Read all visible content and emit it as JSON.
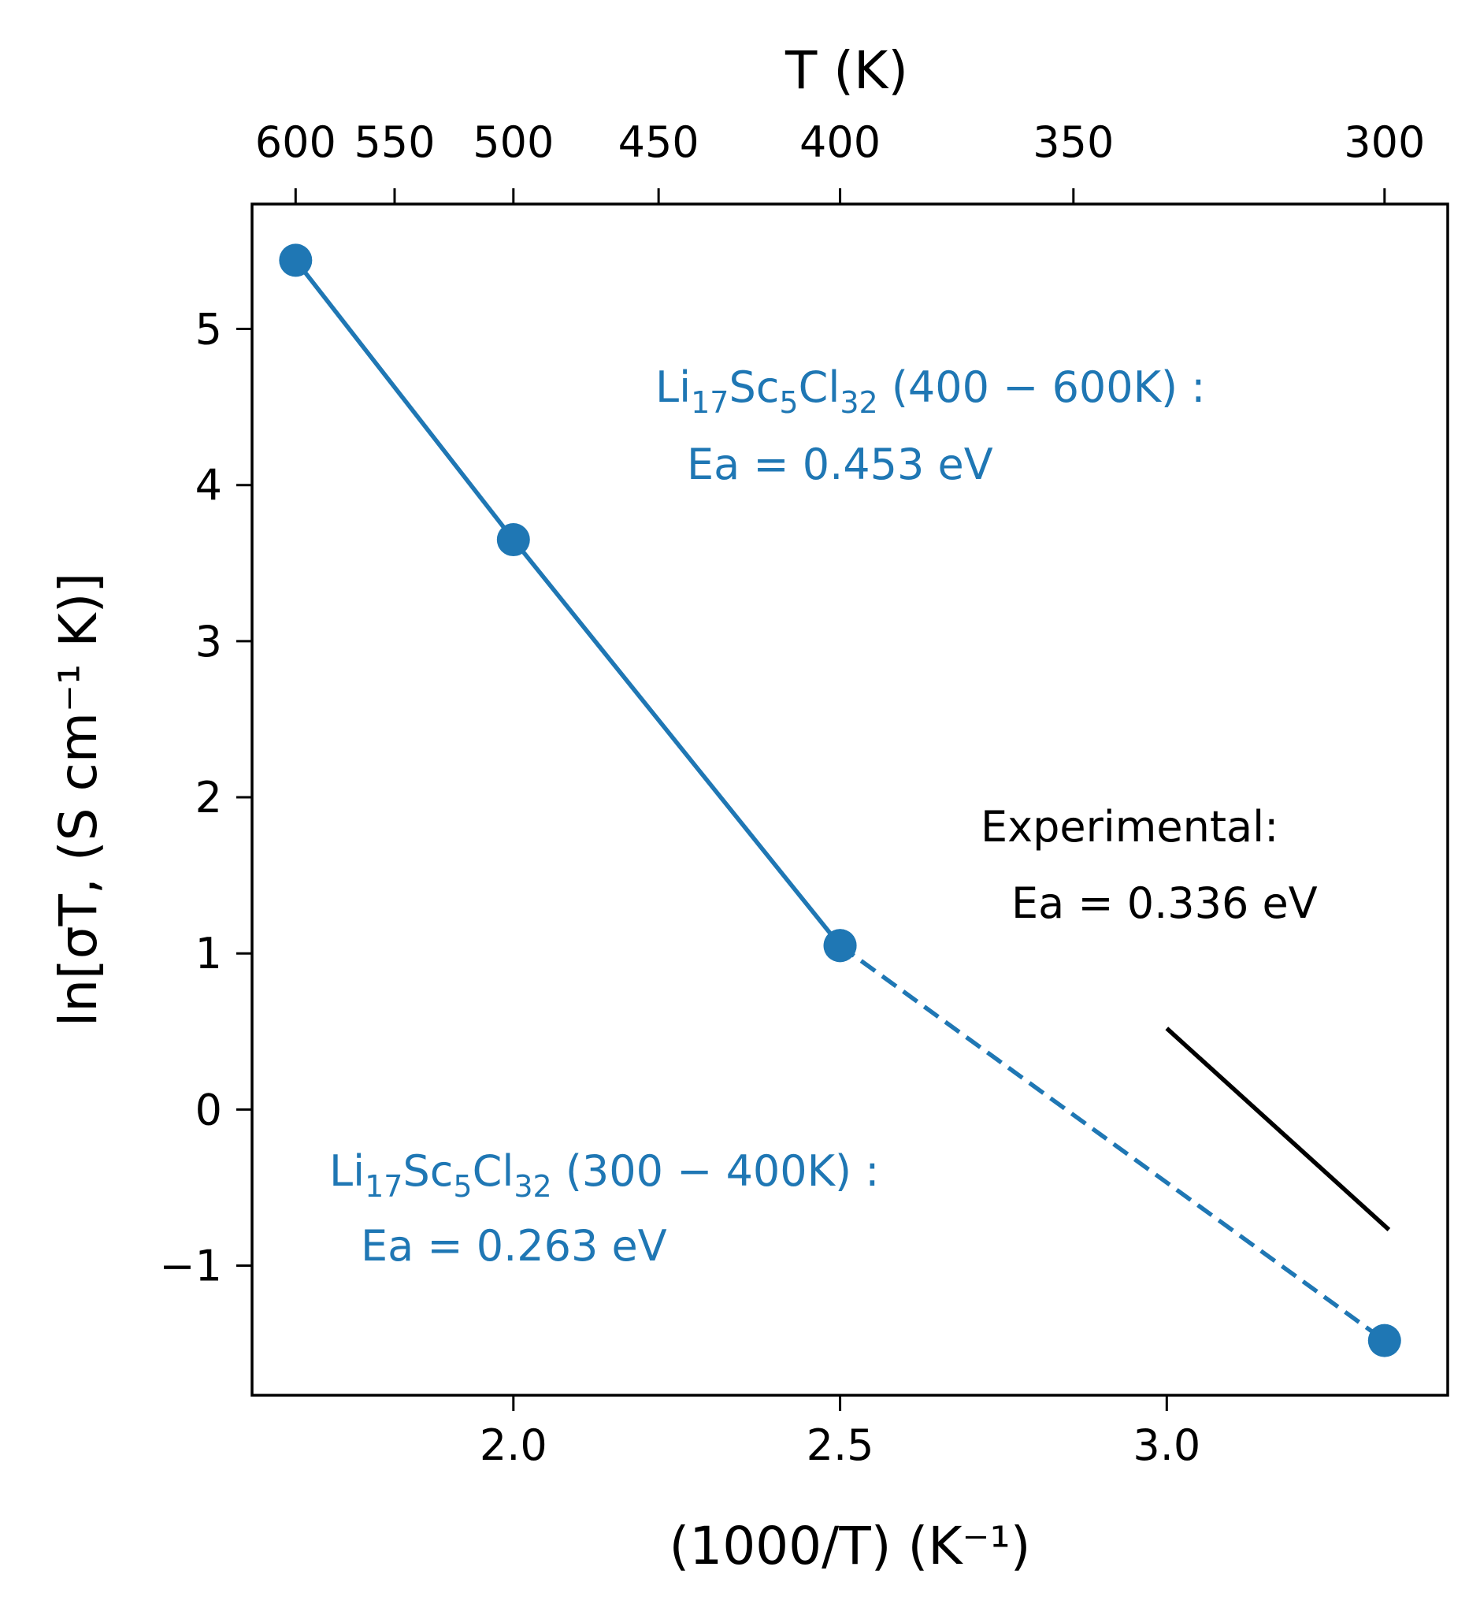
{
  "chart_data": {
    "type": "line",
    "title": "",
    "xlabel": "(1000/T) (K⁻¹)",
    "ylabel": "ln[σT, (S cm⁻¹ K)]",
    "top_xlabel": "T (K)",
    "xlim": [
      1.6,
      3.43
    ],
    "ylim": [
      -1.83,
      5.8
    ],
    "x_ticks": [
      2.0,
      2.5,
      3.0
    ],
    "x_tick_labels": [
      "2.0",
      "2.5",
      "3.0"
    ],
    "y_ticks": [
      -1,
      0,
      1,
      2,
      3,
      4,
      5
    ],
    "y_tick_labels": [
      "−1",
      "0",
      "1",
      "2",
      "3",
      "4",
      "5"
    ],
    "top_ticks_T": [
      600,
      550,
      500,
      450,
      400,
      350,
      300
    ],
    "top_tick_labels": [
      "600",
      "550",
      "500",
      "450",
      "400",
      "350",
      "300"
    ],
    "grid": false,
    "colors": {
      "series": "#1f77b4",
      "experimental": "#000000"
    },
    "series": [
      {
        "name": "Li₁₇Sc₅Cl₃₂ (400 − 600K)",
        "line_style": "solid",
        "x": [
          1.6667,
          2.0,
          2.5
        ],
        "y": [
          5.44,
          3.65,
          1.05
        ]
      },
      {
        "name": "Li₁₇Sc₅Cl₃₂ (300 − 400K)",
        "line_style": "dashed",
        "x": [
          2.5,
          3.3333
        ],
        "y": [
          1.05,
          -1.48
        ]
      },
      {
        "name": "Experimental",
        "line_style": "solid",
        "markers": false,
        "x": [
          3.0,
          3.34
        ],
        "y": [
          0.52,
          -0.77
        ]
      }
    ],
    "annotations": {
      "high": {
        "formula": [
          "Li",
          "17",
          "Sc",
          "5",
          "Cl",
          "32",
          " (400 − 600K) :"
        ],
        "ea": "Ea = 0.453 eV"
      },
      "low": {
        "formula": [
          "Li",
          "17",
          "Sc",
          "5",
          "Cl",
          "32",
          " (300 − 400K) :"
        ],
        "ea": "Ea = 0.263 eV"
      },
      "exp": {
        "label": "Experimental:",
        "ea": "Ea = 0.336 eV"
      }
    }
  }
}
